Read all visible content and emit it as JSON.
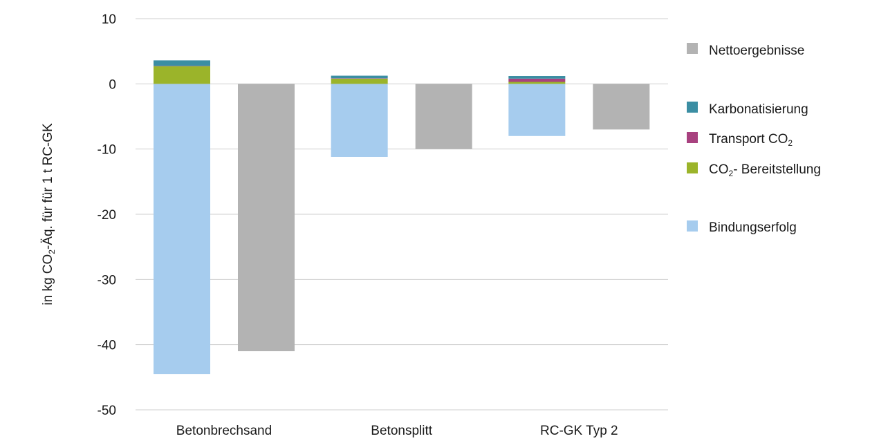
{
  "chart_data": {
    "type": "bar",
    "stacked": true,
    "categories": [
      "Betonbrechsand",
      "Betonsplitt",
      "RC-GK Typ 2"
    ],
    "ylabel": {
      "prefix": "in kg CO",
      "sub": "2",
      "suffix": "-Äq. für für 1 t RC-GK"
    },
    "ylim": [
      -50,
      10
    ],
    "yticks": [
      10,
      0,
      -10,
      -20,
      -30,
      -40,
      -50
    ],
    "grid": true,
    "legend_position": "right",
    "stacked_series": [
      {
        "name": "Bindungserfolg",
        "color": "#a6ccee",
        "values": [
          -44.5,
          -11.2,
          -8.0
        ]
      },
      {
        "name": "CO2- Bereitstellung",
        "color": "#9bb42a",
        "values": [
          2.7,
          0.8,
          0.3
        ]
      },
      {
        "name": "Transport CO2",
        "color": "#a8417f",
        "values": [
          0.05,
          0.05,
          0.5
        ]
      },
      {
        "name": "Karbonatisierung",
        "color": "#3b8ea3",
        "values": [
          0.85,
          0.4,
          0.4
        ]
      }
    ],
    "net_series": {
      "name": "Nettoergebnisse",
      "color": "#b3b3b3",
      "values": [
        -41,
        -10,
        -7
      ]
    },
    "legend": [
      {
        "key": "net",
        "label": "Nettoergebnisse",
        "color": "#b3b3b3"
      },
      {
        "key": "karb",
        "label": "Karbonatisierung",
        "color": "#3b8ea3"
      },
      {
        "key": "trans",
        "prefix": "Transport CO",
        "sub": "2",
        "suffix": "",
        "color": "#a8417f"
      },
      {
        "key": "bereit",
        "prefix": "CO",
        "sub": "2",
        "suffix": "- Bereitstellung",
        "color": "#9bb42a"
      },
      {
        "key": "bind",
        "label": "Bindungserfolg",
        "color": "#a6ccee"
      }
    ]
  }
}
